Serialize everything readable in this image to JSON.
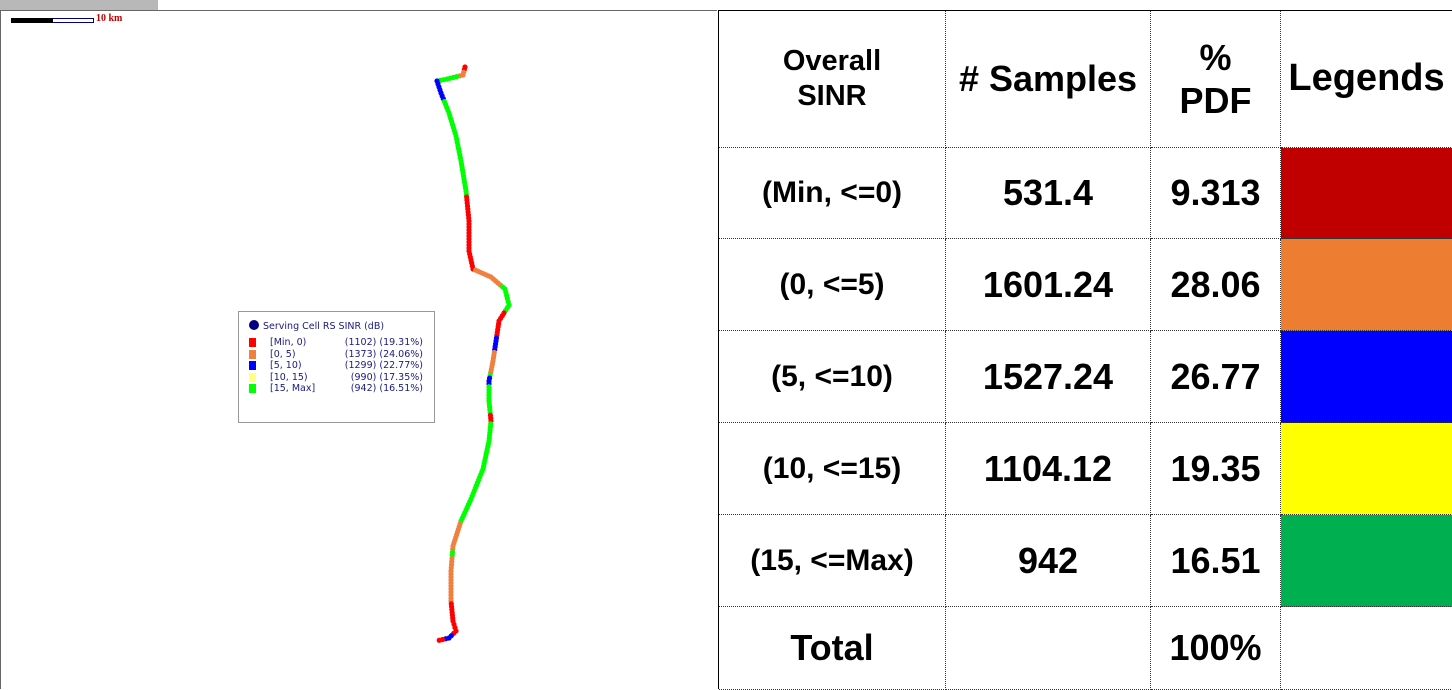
{
  "map": {
    "scale_label": "10 km",
    "legend": {
      "title": "Serving Cell RS SINR (dB)",
      "entries": [
        {
          "range": "[Min, 0)",
          "count": "(1102) (19.31%)",
          "color": "#ff0000"
        },
        {
          "range": "[0, 5)",
          "count": "(1373) (24.06%)",
          "color": "#f08040"
        },
        {
          "range": "[5, 10)",
          "count": "(1299) (22.77%)",
          "color": "#0000ff"
        },
        {
          "range": "[10, 15)",
          "count": "(990) (17.35%)",
          "color": "#ffff80"
        },
        {
          "range": "[15, Max]",
          "count": "(942) (16.51%)",
          "color": "#00ff00"
        }
      ]
    }
  },
  "table": {
    "headers": [
      "Overall SINR",
      "# Samples",
      "% PDF",
      "Legends"
    ],
    "rows": [
      {
        "range": "(Min, <=0)",
        "samples": 531.4,
        "pdf": 9.313,
        "color": "#c00000"
      },
      {
        "range": "(0, <=5)",
        "samples": 1601.24,
        "pdf": 28.06,
        "color": "#ed7d31"
      },
      {
        "range": "(5, <=10)",
        "samples": 1527.24,
        "pdf": 26.77,
        "color": "#0000ff"
      },
      {
        "range": "(10, <=15)",
        "samples": 1104.12,
        "pdf": 19.35,
        "color": "#ffff00"
      },
      {
        "range": "(15, <=Max)",
        "samples": 942,
        "pdf": 16.51,
        "color": "#00b050"
      }
    ],
    "total": {
      "label": "Total",
      "pdf": "100%"
    }
  }
}
